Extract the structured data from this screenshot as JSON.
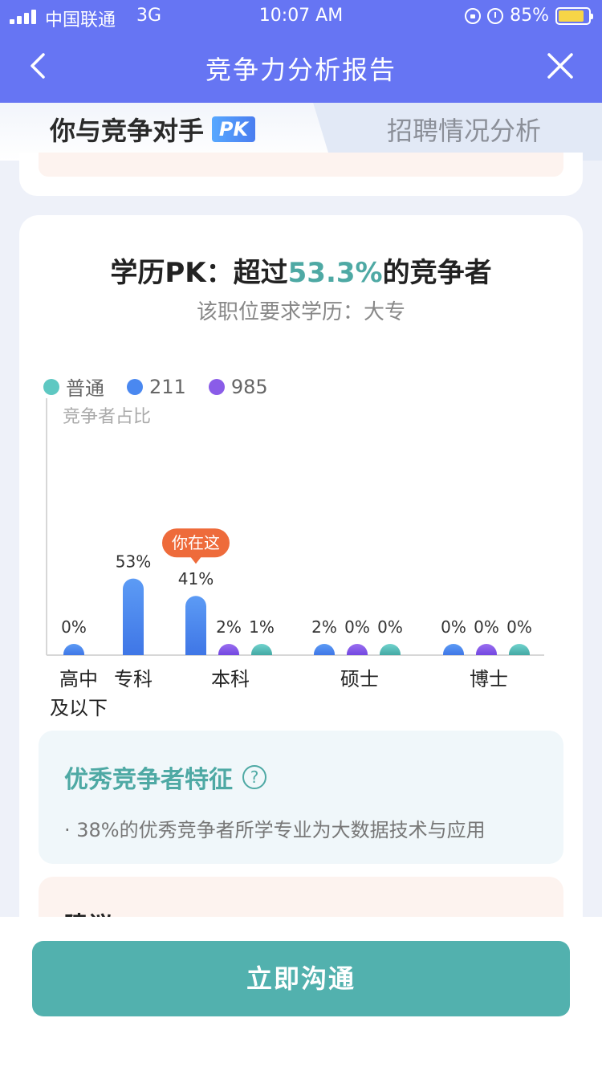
{
  "status_bar": {
    "carrier": "中国联通",
    "network": "3G",
    "time": "10:07 AM",
    "battery": "85%",
    "battery_level": 0.85,
    "battery_color": "#f7d547"
  },
  "nav": {
    "title": "竞争力分析报告",
    "back_icon": "chevron-left-icon",
    "close_icon": "close-icon",
    "background": "#6675f3"
  },
  "tabs": [
    {
      "label": "你与竞争对手",
      "badge": "PK",
      "active": true
    },
    {
      "label": "招聘情况分析",
      "active": false
    }
  ],
  "education_card": {
    "title_prefix": "学历PK：超过",
    "title_highlight": "53.3%",
    "title_suffix": "的竞争者",
    "subtitle": "该职位要求学历：大专",
    "accent_color": "#4ea9a4"
  },
  "chart_data": {
    "type": "bar",
    "ylabel": "竞争者占比",
    "legend": [
      {
        "name": "普通",
        "color": "#5ec8c2"
      },
      {
        "name": "211",
        "color": "#4a88f0"
      },
      {
        "name": "985",
        "color": "#8a5ce8"
      }
    ],
    "groups": [
      {
        "label": [
          "高中",
          "及以下"
        ],
        "bars": [
          {
            "series": "普通",
            "value": 0,
            "label": "0%"
          }
        ]
      },
      {
        "label": [
          "专科"
        ],
        "bars": [
          {
            "series": "普通",
            "value": 53,
            "label": "53%"
          }
        ]
      },
      {
        "label": [
          "本科"
        ],
        "bars": [
          {
            "series": "普通",
            "value": 41,
            "label": "41%",
            "marker": "你在这"
          },
          {
            "series": "211",
            "value": 2,
            "label": "2%"
          },
          {
            "series": "985",
            "value": 1,
            "label": "1%"
          }
        ]
      },
      {
        "label": [
          "硕士"
        ],
        "bars": [
          {
            "series": "普通",
            "value": 2,
            "label": "2%"
          },
          {
            "series": "211",
            "value": 0,
            "label": "0%"
          },
          {
            "series": "985",
            "value": 0,
            "label": "0%"
          }
        ]
      },
      {
        "label": [
          "博士"
        ],
        "bars": [
          {
            "series": "普通",
            "value": 0,
            "label": "0%"
          },
          {
            "series": "211",
            "value": 0,
            "label": "0%"
          },
          {
            "series": "985",
            "value": 0,
            "label": "0%"
          }
        ]
      }
    ],
    "you_are_here": "你在这",
    "you_are_here_color": "#ee6b3b"
  },
  "features": {
    "title": "优秀竞争者特征",
    "help_icon": "question-circle-icon",
    "items": [
      "· 38%的优秀竞争者所学专业为大数据技术与应用"
    ]
  },
  "advice": {
    "title": "建议"
  },
  "cta": {
    "label": "立即沟通",
    "color": "#52b1ae"
  }
}
